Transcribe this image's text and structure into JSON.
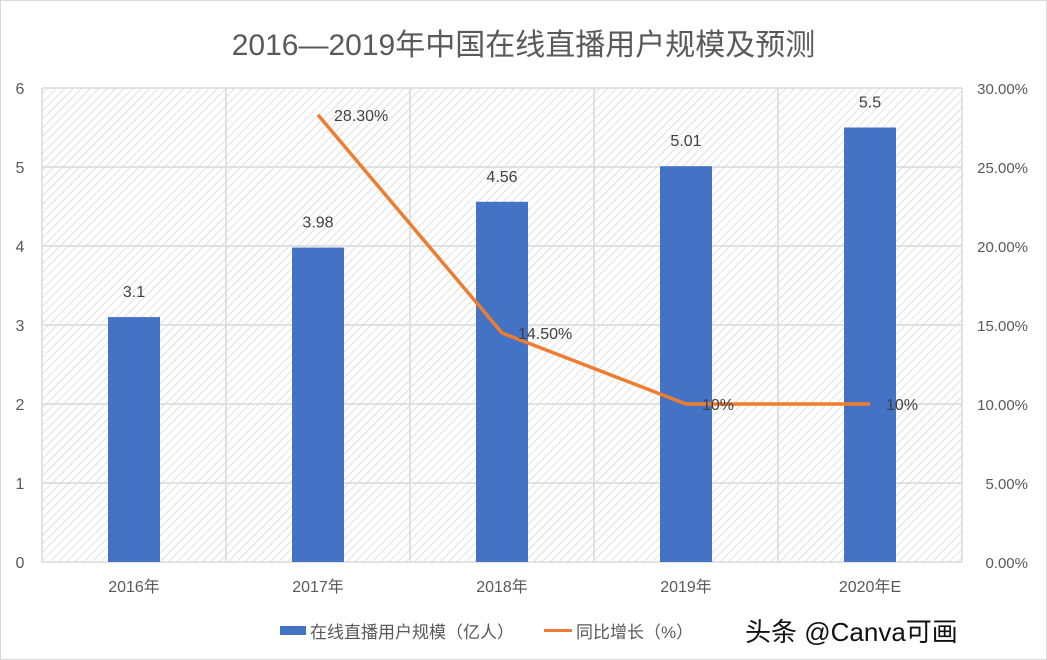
{
  "chart_data": {
    "type": "bar+line",
    "title": "2016—2019年中国在线直播用户规模及预测",
    "categories": [
      "2016年",
      "2017年",
      "2018年",
      "2019年",
      "2020年E"
    ],
    "series": [
      {
        "name": "在线直播用户规模（亿人）",
        "type": "bar",
        "axis": "left",
        "color": "#4472c4",
        "values": [
          3.1,
          3.98,
          4.56,
          5.01,
          5.5
        ],
        "labels": [
          "3.1",
          "3.98",
          "4.56",
          "5.01",
          "5.5"
        ]
      },
      {
        "name": "同比增长（%）",
        "type": "line",
        "axis": "right",
        "color": "#ed7d31",
        "values": [
          null,
          28.3,
          14.5,
          10,
          10
        ],
        "labels": [
          "",
          "28.30%",
          "14.50%",
          "10%",
          "10%"
        ]
      }
    ],
    "y_left": {
      "range": [
        0,
        6
      ],
      "ticks": [
        "0",
        "1",
        "2",
        "3",
        "4",
        "5",
        "6"
      ]
    },
    "y_right": {
      "range": [
        0,
        30
      ],
      "ticks": [
        "0.00%",
        "5.00%",
        "10.00%",
        "15.00%",
        "20.00%",
        "25.00%",
        "30.00%"
      ]
    },
    "grid": true,
    "legend_position": "bottom"
  },
  "watermark": "头条 @Canva可画"
}
